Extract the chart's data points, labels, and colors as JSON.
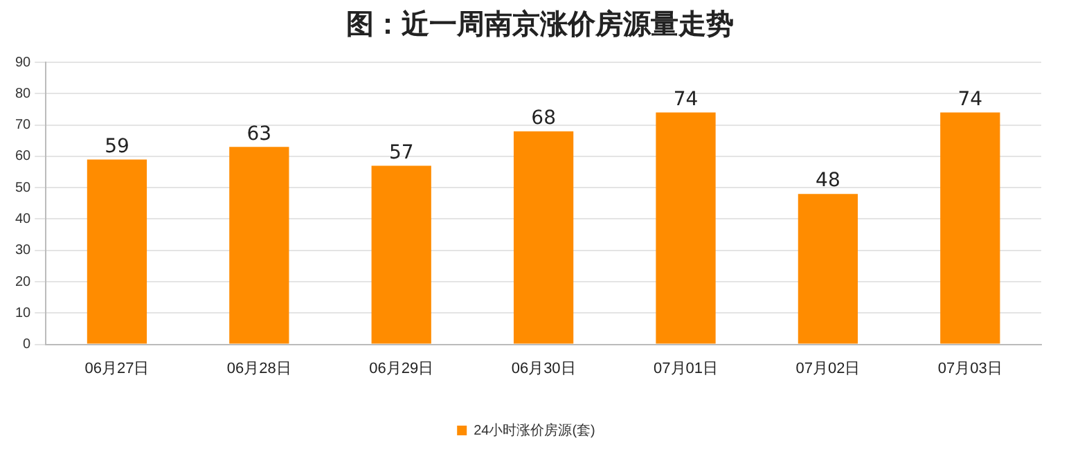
{
  "chart_data": {
    "type": "bar",
    "title": "图：近一周南京涨价房源量走势",
    "categories": [
      "06月27日",
      "06月28日",
      "06月29日",
      "06月30日",
      "07月01日",
      "07月02日",
      "07月03日"
    ],
    "series": [
      {
        "name": "24小时涨价房源(套)",
        "color": "#ff8c00",
        "values": [
          59,
          63,
          57,
          68,
          74,
          48,
          74
        ]
      }
    ],
    "ylim": [
      0,
      90
    ],
    "yticks": [
      0,
      10,
      20,
      30,
      40,
      50,
      60,
      70,
      80,
      90
    ],
    "grid": "y",
    "legend": "bottom",
    "data_labels": true
  }
}
